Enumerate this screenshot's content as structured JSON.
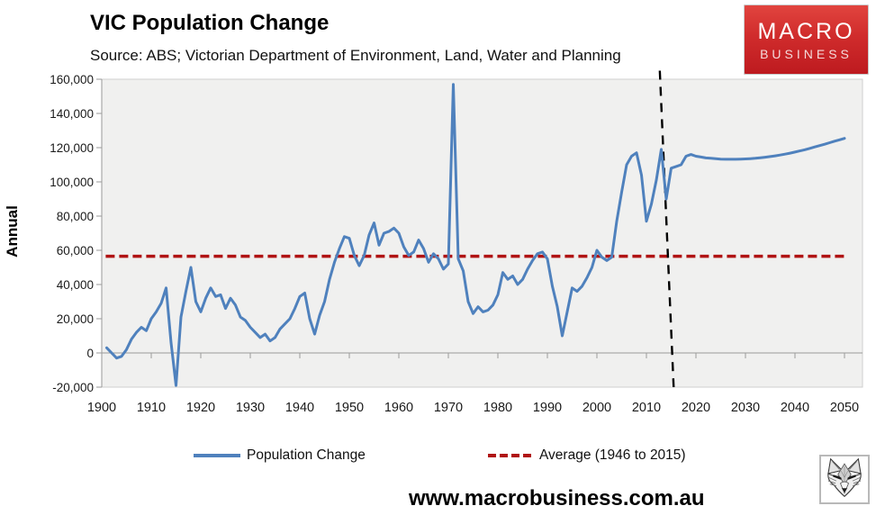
{
  "header": {
    "title": "VIC Population Change",
    "subtitle": "Source: ABS; Victorian Department of Environment, Land, Water and Planning"
  },
  "logo": {
    "line1": "MACRO",
    "line2": "BUSINESS"
  },
  "footer": {
    "website": "www.macrobusiness.com.au"
  },
  "colors": {
    "population_line": "#4f81bd",
    "average_line": "#b01414",
    "forecast_marker": "#000000",
    "plot_background": "#f0f0ef",
    "axis": "#9a9a9a",
    "plot_border": "#cfcfcf",
    "logo_red": "#cf2b2b"
  },
  "chart_data": {
    "type": "line",
    "title": "VIC Population Change",
    "ylabel": "Annual",
    "xlabel": "",
    "ylim": [
      -20000,
      160000
    ],
    "yticks": [
      -20000,
      0,
      20000,
      40000,
      60000,
      80000,
      100000,
      120000,
      140000,
      160000
    ],
    "ytick_labels": [
      "-20,000",
      "0",
      "20,000",
      "40,000",
      "60,000",
      "80,000",
      "100,000",
      "120,000",
      "140,000",
      "160,000"
    ],
    "xticks": [
      1900,
      1910,
      1920,
      1930,
      1940,
      1950,
      1960,
      1970,
      1980,
      1990,
      2000,
      2010,
      2020,
      2030,
      2040,
      2050
    ],
    "xtick_labels": [
      "1900",
      "1910",
      "1920",
      "1930",
      "1940",
      "1950",
      "1960",
      "1970",
      "1980",
      "1990",
      "2000",
      "2010",
      "2020",
      "2030",
      "2040",
      "2050"
    ],
    "grid": "zero-line-only",
    "legend_position": "bottom",
    "series": [
      {
        "name": "Population Change",
        "color": "#4f81bd",
        "style": "solid",
        "start_year": 1901,
        "values": [
          3000,
          0,
          -3000,
          -2000,
          2000,
          8000,
          12000,
          15000,
          13000,
          20000,
          24000,
          29000,
          38000,
          6000,
          -19000,
          21000,
          36000,
          50000,
          30000,
          24000,
          32000,
          38000,
          33000,
          34000,
          26000,
          32000,
          28000,
          21000,
          19000,
          15000,
          12000,
          9000,
          11000,
          7000,
          9000,
          14000,
          17000,
          20000,
          26000,
          33000,
          35000,
          20000,
          11000,
          22000,
          30000,
          43000,
          53000,
          61000,
          68000,
          67000,
          57000,
          51000,
          57000,
          69000,
          76000,
          63000,
          70000,
          71000,
          73000,
          70000,
          62000,
          57000,
          59000,
          66000,
          61000,
          53000,
          58000,
          55000,
          49000,
          52000,
          157000,
          55000,
          48000,
          30000,
          23000,
          27000,
          24000,
          25000,
          28000,
          34000,
          47000,
          43000,
          45000,
          40000,
          43000,
          49000,
          54000,
          58000,
          59000,
          55000,
          39000,
          27000,
          10000,
          24000,
          38000,
          36000,
          39000,
          44000,
          50000,
          60000,
          56000,
          54000,
          56000,
          77000,
          94000,
          110000,
          115000,
          117000,
          104000,
          77000,
          87000,
          101000,
          119000,
          90000,
          108000,
          109000,
          110000,
          115000,
          116000,
          115000,
          114500,
          114000,
          113800,
          113500,
          113300,
          113200,
          113200,
          113200,
          113300,
          113400,
          113600,
          113800,
          114100,
          114400,
          114800,
          115200,
          115700,
          116200,
          116800,
          117400,
          118100,
          118800,
          119600,
          120400,
          121200,
          122000,
          122900,
          123800,
          124600,
          125400
        ]
      }
    ],
    "average_line": {
      "name": "Average (1946 to 2015)",
      "color": "#b01414",
      "style": "dashed",
      "value": 56500,
      "year_start": 1900.8,
      "year_end": 2050.6
    },
    "forecast_divider": {
      "style": "dashed",
      "color": "#000000",
      "year_top": 2012.7,
      "year_bottom": 2015.5,
      "value_top": 165000,
      "value_bottom": -20000
    }
  }
}
